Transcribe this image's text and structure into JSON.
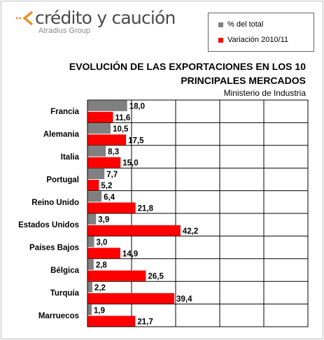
{
  "logo": {
    "name": "crédito y caución",
    "tagline": "Atradius Group"
  },
  "colors": {
    "series_total": "#808080",
    "series_variation": "#ff0000",
    "brand_orange": "#f08a1c"
  },
  "chart_data": {
    "type": "bar",
    "orientation": "horizontal",
    "title": "EVOLUCIÓN DE LAS EXPORTACIONES EN LOS 10 PRINCIPALES MERCADOS",
    "title_lines": [
      "EVOLUCIÓN DE LAS EXPORTACIONES EN LOS 10",
      "PRINCIPALES MERCADOS"
    ],
    "subtitle": "Ministerio de Industria",
    "categories": [
      "Francia",
      "Alemania",
      "Italia",
      "Portugal",
      "Reino Unido",
      "Estados Unidos",
      "Países Bajos",
      "Bélgica",
      "Turquía",
      "Marruecos"
    ],
    "series": [
      {
        "name": "% del total",
        "values": [
          18.0,
          10.5,
          8.3,
          7.7,
          6.4,
          3.9,
          3.0,
          2.8,
          2.2,
          1.9
        ],
        "labels": [
          "18,0",
          "10,5",
          "8,3",
          "7,7",
          "6,4",
          "3,9",
          "3,0",
          "2,8",
          "2,2",
          "1,9"
        ]
      },
      {
        "name": "Variación 2010/11",
        "values": [
          11.6,
          17.5,
          15.0,
          5.2,
          21.8,
          42.2,
          14.9,
          26.5,
          39.4,
          21.7
        ],
        "labels": [
          "11,6",
          "17,5",
          "15,0",
          "5,2",
          "21,8",
          "42,2",
          "14,9",
          "26,5",
          "39,4",
          "21,7"
        ]
      }
    ],
    "xlim": [
      0,
      100
    ],
    "grid": true,
    "legend_position": "top-right"
  }
}
